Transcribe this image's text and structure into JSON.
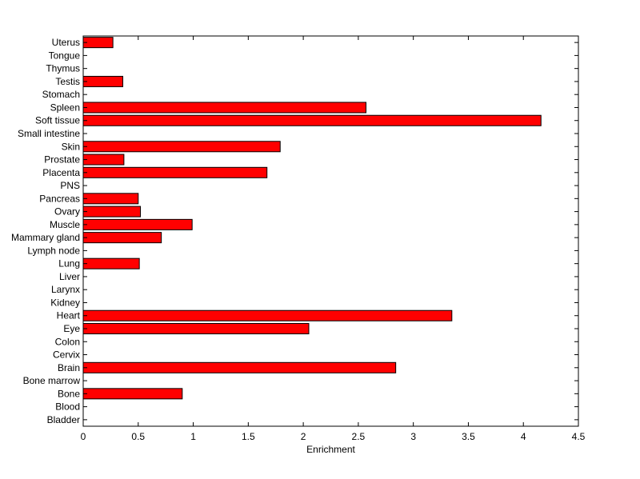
{
  "chart_data": {
    "type": "bar",
    "orientation": "horizontal",
    "title": "",
    "xlabel": "Enrichment",
    "ylabel": "",
    "xlim": [
      0,
      4.5
    ],
    "xticks": [
      0,
      0.5,
      1,
      1.5,
      2,
      2.5,
      3,
      3.5,
      4,
      4.5
    ],
    "xtick_labels": [
      "0",
      "0.5",
      "1",
      "1.5",
      "2",
      "2.5",
      "3",
      "3.5",
      "4",
      "4.5"
    ],
    "grid": false,
    "legend": "none",
    "bar_color": "#ff0000",
    "categories": [
      "Bladder",
      "Blood",
      "Bone",
      "Bone marrow",
      "Brain",
      "Cervix",
      "Colon",
      "Eye",
      "Heart",
      "Kidney",
      "Larynx",
      "Liver",
      "Lung",
      "Lymph node",
      "Mammary gland",
      "Muscle",
      "Ovary",
      "Pancreas",
      "PNS",
      "Placenta",
      "Prostate",
      "Skin",
      "Small intestine",
      "Soft tissue",
      "Spleen",
      "Stomach",
      "Testis",
      "Thymus",
      "Tongue",
      "Uterus"
    ],
    "values": [
      0,
      0,
      0.9,
      0,
      2.84,
      0,
      0,
      2.05,
      3.35,
      0,
      0,
      0,
      0.51,
      0,
      0.71,
      0.99,
      0.52,
      0.5,
      0,
      1.67,
      0.37,
      1.79,
      0,
      4.16,
      2.57,
      0,
      0.36,
      0,
      0,
      0.27
    ]
  }
}
